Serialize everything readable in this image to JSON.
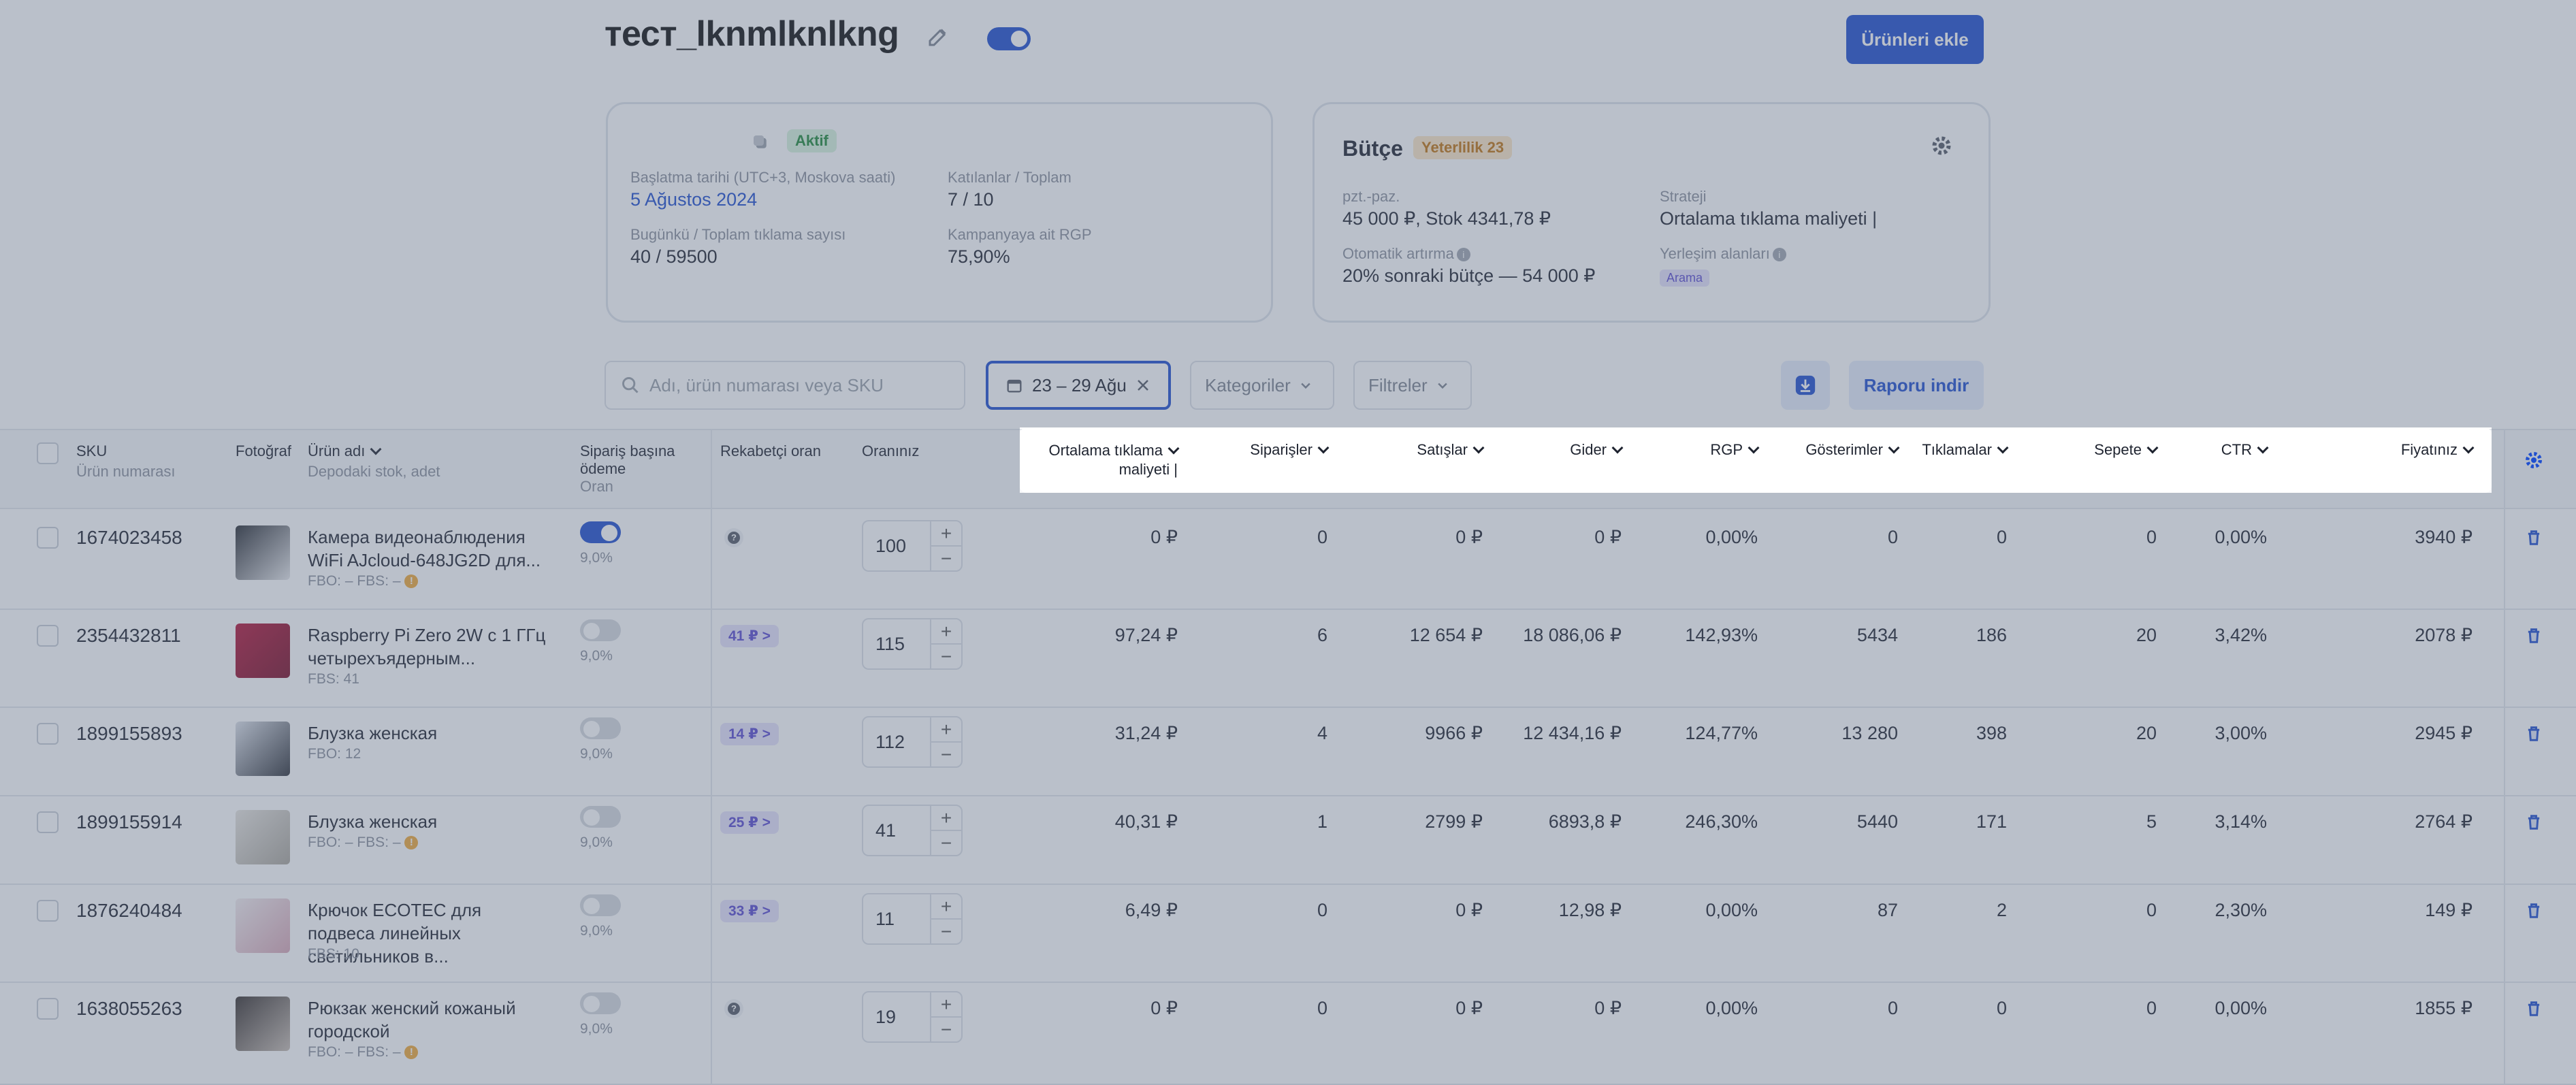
{
  "header": {
    "title": "тест_lknmlknlkng",
    "add_products_label": "Ürünleri ekle"
  },
  "campaign_card": {
    "status": "Aktif",
    "start_label": "Başlatma tarihi (UTC+3, Moskova saati)",
    "start_value": "5 Ağustos 2024",
    "clicks_label": "Bugünkü / Toplam tıklama sayısı",
    "clicks_value": "40 / 59500",
    "participants_label": "Katılanlar / Toplam",
    "participants_value": "7 / 10",
    "rgp_label": "Kampanyaya ait RGP",
    "rgp_value": "75,90%"
  },
  "budget_card": {
    "title": "Bütçe",
    "badge": "Yeterlilik 23",
    "budget_label": "pzt.-paz.",
    "budget_value": "45 000 ₽, Stok 4341,78 ₽",
    "strategy_label": "Strateji",
    "strategy_value": "Ortalama tıklama maliyeti |",
    "auto_label": "Otomatik artırma",
    "auto_value": "20% sonraki bütçe — 54 000 ₽",
    "placement_label": "Yerleşim alanları",
    "placement_value": "Arama"
  },
  "filters": {
    "search_placeholder": "Adı, ürün numarası veya SKU",
    "date_range": "23 – 29 Ağu",
    "categories_label": "Kategoriler",
    "filters_label": "Filtreler",
    "report_label": "Raporu indir"
  },
  "columns": {
    "sku": "SKU",
    "sku_sub": "Ürün numarası",
    "photo": "Fotoğraf",
    "name": "Ürün adı",
    "name_sub": "Depodaki stok, adet",
    "cpo_line1": "Sipariş başına",
    "cpo_line2": "ödeme",
    "cpo_sub": "Oran",
    "competitor": "Rekabetçi oran",
    "your_rate": "Oranınız",
    "avg_cpc_line1": "Ortalama tıklama",
    "avg_cpc_line2": "maliyeti |",
    "orders": "Siparişler",
    "sales": "Satışlar",
    "expense": "Gider",
    "rgp": "RGP",
    "impressions": "Gösterimler",
    "clicks": "Tıklamalar",
    "cart": "Sepete",
    "ctr": "CTR",
    "price": "Fiyatınız"
  },
  "rows": [
    {
      "sku": "1674023458",
      "name": "Камера видеонаблюдения WiFi AJcloud-648JG2D для...",
      "stock": "FBO: –   FBS: –",
      "warn": true,
      "cpo_on": true,
      "cpo_pct": "9,0%",
      "competitor": "",
      "rate": "100",
      "avg_cpc": "0 ₽",
      "orders": "0",
      "sales": "0 ₽",
      "expense": "0 ₽",
      "rgp": "0,00%",
      "impressions": "0",
      "clicks": "0",
      "cart": "0",
      "ctr": "0,00%",
      "price": "3940 ₽"
    },
    {
      "sku": "2354432811",
      "name": "Raspberry Pi Zero 2W с 1 ГГц четырехъядерным...",
      "stock": "FBS: 41",
      "warn": false,
      "cpo_on": false,
      "cpo_pct": "9,0%",
      "competitor": "41 ₽ >",
      "rate": "115",
      "avg_cpc": "97,24 ₽",
      "orders": "6",
      "sales": "12 654 ₽",
      "expense": "18 086,06 ₽",
      "rgp": "142,93%",
      "impressions": "5434",
      "clicks": "186",
      "cart": "20",
      "ctr": "3,42%",
      "price": "2078 ₽"
    },
    {
      "sku": "1899155893",
      "name": "Блузка женская",
      "stock": "FBO: 12",
      "warn": false,
      "cpo_on": false,
      "cpo_pct": "9,0%",
      "competitor": "14 ₽ >",
      "rate": "112",
      "avg_cpc": "31,24 ₽",
      "orders": "4",
      "sales": "9966 ₽",
      "expense": "12 434,16 ₽",
      "rgp": "124,77%",
      "impressions": "13 280",
      "clicks": "398",
      "cart": "20",
      "ctr": "3,00%",
      "price": "2945 ₽"
    },
    {
      "sku": "1899155914",
      "name": "Блузка женская",
      "stock": "FBO: –   FBS: –",
      "warn": true,
      "cpo_on": false,
      "cpo_pct": "9,0%",
      "competitor": "25 ₽ >",
      "rate": "41",
      "avg_cpc": "40,31 ₽",
      "orders": "1",
      "sales": "2799 ₽",
      "expense": "6893,8 ₽",
      "rgp": "246,30%",
      "impressions": "5440",
      "clicks": "171",
      "cart": "5",
      "ctr": "3,14%",
      "price": "2764 ₽"
    },
    {
      "sku": "1876240484",
      "name": "Крючок ECOTEC для подвеса линейных светильников в...",
      "stock": "FBS: 10",
      "warn": false,
      "cpo_on": false,
      "cpo_pct": "9,0%",
      "competitor": "33 ₽ >",
      "rate": "11",
      "avg_cpc": "6,49 ₽",
      "orders": "0",
      "sales": "0 ₽",
      "expense": "12,98 ₽",
      "rgp": "0,00%",
      "impressions": "87",
      "clicks": "2",
      "cart": "0",
      "ctr": "2,30%",
      "price": "149 ₽"
    },
    {
      "sku": "1638055263",
      "name": "Рюкзак женский кожаный городской",
      "stock": "FBO: –   FBS: –",
      "warn": true,
      "cpo_on": false,
      "cpo_pct": "9,0%",
      "competitor": "",
      "rate": "19",
      "avg_cpc": "0 ₽",
      "orders": "0",
      "sales": "0 ₽",
      "expense": "0 ₽",
      "rgp": "0,00%",
      "impressions": "0",
      "clicks": "0",
      "cart": "0",
      "ctr": "0,00%",
      "price": "1855 ₽"
    }
  ]
}
